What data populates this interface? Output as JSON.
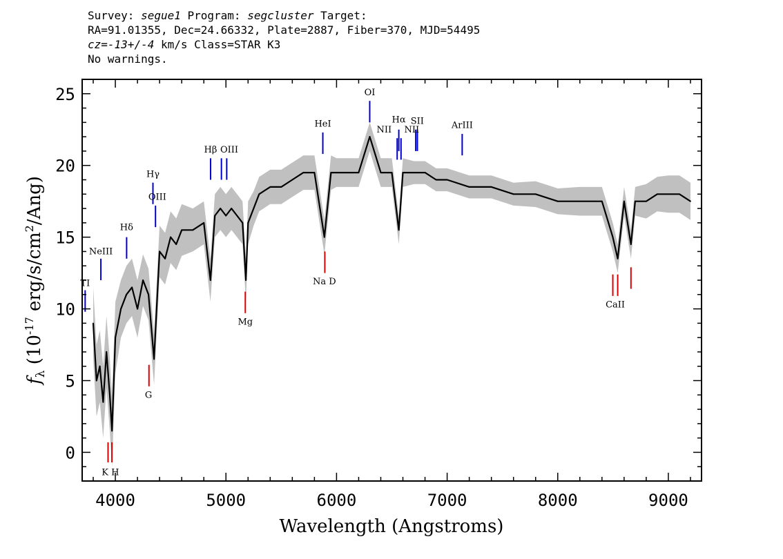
{
  "header": {
    "line1_prefix": "Survey: ",
    "survey": "segue1",
    "line1_mid": " Program: ",
    "program": "segcluster",
    "line1_suffix": " Target:",
    "line2": "RA=91.01355, Dec=24.66332, Plate=2887, Fiber=370, MJD=54495",
    "cz_label": "cz=",
    "cz_value": "-13+/-4",
    "line3_suffix": " km/s Class=STAR K3",
    "line4": "No warnings."
  },
  "colors": {
    "spectrum": "#000000",
    "error_band": "#c0c0c0",
    "emission_marker": "#0000cc",
    "absorption_marker": "#dd0000"
  },
  "chart_data": {
    "type": "line",
    "xlabel": "Wavelength (Angstroms)",
    "ylabel": "f_λ (10^-17 erg/s/cm^2/Ang)",
    "xlim": [
      3700,
      9300
    ],
    "ylim": [
      -2,
      26
    ],
    "x_ticks": [
      4000,
      5000,
      6000,
      7000,
      8000,
      9000
    ],
    "y_ticks": [
      0,
      5,
      10,
      15,
      20,
      25
    ],
    "grid": false,
    "series": [
      {
        "x": [
          3800,
          3830,
          3860,
          3890,
          3920,
          3950,
          3970,
          4000,
          4050,
          4100,
          4150,
          4200,
          4250,
          4300,
          4350,
          4400,
          4450,
          4500,
          4550,
          4600,
          4700,
          4800,
          4860,
          4900,
          4950,
          5000,
          5050,
          5100,
          5150,
          5180,
          5200,
          5250,
          5300,
          5400,
          5500,
          5600,
          5700,
          5800,
          5890,
          5950,
          6000,
          6100,
          6200,
          6300,
          6400,
          6500,
          6563,
          6600,
          6700,
          6800,
          6900,
          7000,
          7200,
          7400,
          7600,
          7800,
          8000,
          8200,
          8400,
          8498,
          8542,
          8600,
          8662,
          8700,
          8800,
          8900,
          9000,
          9100,
          9200
        ],
        "y": [
          9,
          5,
          6,
          3.5,
          7,
          4,
          1.5,
          8,
          10,
          11,
          11.5,
          10,
          12,
          11,
          6.5,
          14,
          13.5,
          15,
          14.5,
          15.5,
          15.5,
          16,
          12,
          16.5,
          17,
          16.5,
          17,
          16.5,
          16,
          12,
          16,
          17,
          18,
          18.5,
          18.5,
          19,
          19.5,
          19.5,
          15,
          19.5,
          19.5,
          19.5,
          19.5,
          22,
          19.5,
          19.5,
          15.5,
          19.5,
          19.5,
          19.5,
          19,
          19,
          18.5,
          18.5,
          18,
          18,
          17.5,
          17.5,
          17.5,
          15,
          13.5,
          17.5,
          14.5,
          17.5,
          17.5,
          18,
          18,
          18,
          17.5
        ],
        "errors": [
          2.5,
          2.5,
          2.5,
          2.5,
          2.5,
          2.5,
          2.5,
          2.5,
          2.0,
          2.0,
          2.0,
          2.0,
          1.8,
          1.8,
          1.8,
          1.8,
          1.8,
          1.8,
          1.8,
          1.8,
          1.5,
          1.5,
          1.5,
          1.5,
          1.5,
          1.5,
          1.5,
          1.5,
          1.5,
          1.5,
          1.5,
          1.2,
          1.2,
          1.2,
          1.2,
          1.2,
          1.2,
          1.2,
          1.2,
          1.2,
          1.0,
          1.0,
          1.0,
          1.0,
          1.0,
          1.0,
          1.0,
          1.0,
          0.8,
          0.8,
          0.8,
          0.8,
          0.8,
          0.8,
          0.8,
          0.9,
          0.9,
          1.0,
          1.0,
          1.0,
          1.0,
          1.0,
          1.0,
          1.0,
          1.2,
          1.2,
          1.3,
          1.3,
          1.3
        ]
      }
    ],
    "emission_lines": [
      {
        "label": "TI",
        "wavelength": 3727,
        "y_top": 11.3,
        "y_bottom": 9.8
      },
      {
        "label": "NeIII",
        "wavelength": 3869,
        "y_top": 13.5,
        "y_bottom": 12.0
      },
      {
        "label": "Hδ",
        "wavelength": 4102,
        "y_top": 15.0,
        "y_bottom": 13.5
      },
      {
        "label": "Hγ",
        "wavelength": 4340,
        "y_top": 18.8,
        "y_bottom": 17.3
      },
      {
        "label": "OIII",
        "wavelength": 4363,
        "y_top": 17.2,
        "y_bottom": 15.7
      },
      {
        "label": "Hβ",
        "wavelength": 4861,
        "y_top": 20.5,
        "y_bottom": 19.0
      },
      {
        "label": "OIII",
        "wavelength": 4959,
        "y_top": 20.5,
        "y_bottom": 19.0
      },
      {
        "label": "OIII",
        "wavelength": 5007,
        "y_top": 20.5,
        "y_bottom": 19.0
      },
      {
        "label": "HeI",
        "wavelength": 5876,
        "y_top": 22.3,
        "y_bottom": 20.8
      },
      {
        "label": "OI",
        "wavelength": 6300,
        "y_top": 24.5,
        "y_bottom": 23.0
      },
      {
        "label": "NII",
        "wavelength": 6548,
        "y_top": 21.9,
        "y_bottom": 20.4
      },
      {
        "label": "Hα",
        "wavelength": 6563,
        "y_top": 22.5,
        "y_bottom": 21.0
      },
      {
        "label": "NII",
        "wavelength": 6583,
        "y_top": 21.9,
        "y_bottom": 20.4
      },
      {
        "label": "SII",
        "wavelength": 6716,
        "y_top": 22.5,
        "y_bottom": 21.0
      },
      {
        "label": "SII",
        "wavelength": 6731,
        "y_top": 22.5,
        "y_bottom": 21.0
      },
      {
        "label": "ArIII",
        "wavelength": 7136,
        "y_top": 22.2,
        "y_bottom": 20.7
      }
    ],
    "absorption_lines": [
      {
        "label": "K",
        "wavelength": 3934,
        "y_top": 0.7,
        "y_bottom": -0.7
      },
      {
        "label": "H",
        "wavelength": 3969,
        "y_top": 0.7,
        "y_bottom": -0.7
      },
      {
        "label": "G",
        "wavelength": 4304,
        "y_top": 6.1,
        "y_bottom": 4.6
      },
      {
        "label": "Mg",
        "wavelength": 5175,
        "y_top": 11.2,
        "y_bottom": 9.7
      },
      {
        "label": "Na D",
        "wavelength": 5894,
        "y_top": 14.0,
        "y_bottom": 12.5
      },
      {
        "label": "CaII",
        "wavelength": 8498,
        "y_top": 12.4,
        "y_bottom": 10.9
      },
      {
        "label": "CaII",
        "wavelength": 8542,
        "y_top": 12.4,
        "y_bottom": 10.9
      },
      {
        "label": "CaII",
        "wavelength": 8662,
        "y_top": 12.9,
        "y_bottom": 11.4
      }
    ],
    "line_labels": [
      {
        "text": "TI",
        "wavelength": 3727,
        "y": 11.6,
        "group": "emission"
      },
      {
        "text": "NeIII",
        "wavelength": 3869,
        "y": 13.8,
        "group": "emission"
      },
      {
        "text": "Hδ",
        "wavelength": 4102,
        "y": 15.5,
        "group": "emission"
      },
      {
        "text": "Hγ",
        "wavelength": 4340,
        "y": 19.2,
        "group": "emission"
      },
      {
        "text": "OIII",
        "wavelength": 4380,
        "y": 17.6,
        "group": "emission"
      },
      {
        "text": "Hβ",
        "wavelength": 4861,
        "y": 20.9,
        "group": "emission"
      },
      {
        "text": "OIII",
        "wavelength": 5030,
        "y": 20.9,
        "group": "emission"
      },
      {
        "text": "HeI",
        "wavelength": 5876,
        "y": 22.7,
        "group": "emission"
      },
      {
        "text": "OI",
        "wavelength": 6300,
        "y": 24.9,
        "group": "emission"
      },
      {
        "text": "NII",
        "wavelength": 6430,
        "y": 22.3,
        "group": "emission"
      },
      {
        "text": "Hα",
        "wavelength": 6563,
        "y": 23.0,
        "group": "emission"
      },
      {
        "text": "NII",
        "wavelength": 6680,
        "y": 22.3,
        "group": "emission"
      },
      {
        "text": "SII",
        "wavelength": 6730,
        "y": 22.9,
        "group": "emission"
      },
      {
        "text": "ArIII",
        "wavelength": 7136,
        "y": 22.6,
        "group": "emission"
      },
      {
        "text": "K H",
        "wavelength": 3955,
        "y": -1.6,
        "group": "absorption"
      },
      {
        "text": "G",
        "wavelength": 4300,
        "y": 3.8,
        "group": "absorption"
      },
      {
        "text": "Mg",
        "wavelength": 5175,
        "y": 8.9,
        "group": "absorption"
      },
      {
        "text": "Na D",
        "wavelength": 5890,
        "y": 11.7,
        "group": "absorption"
      },
      {
        "text": "CaII",
        "wavelength": 8520,
        "y": 10.1,
        "group": "absorption"
      }
    ]
  }
}
